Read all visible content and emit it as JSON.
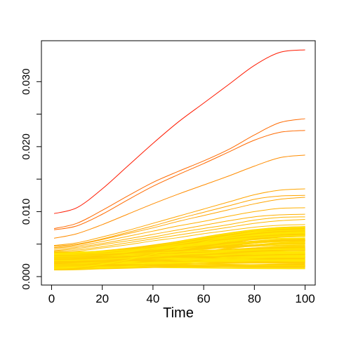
{
  "chart_data": {
    "type": "line",
    "title": "",
    "xlabel": "Time",
    "ylabel": "",
    "xlim": [
      0,
      100
    ],
    "ylim": [
      0,
      0.035
    ],
    "x_ticks": [
      0,
      20,
      40,
      60,
      80,
      100
    ],
    "x_tick_labels": [
      "0",
      "20",
      "40",
      "60",
      "80",
      "100"
    ],
    "y_ticks": [
      0,
      0.01,
      0.02,
      0.03
    ],
    "y_tick_labels": [
      "0.000",
      "0.010",
      "0.020",
      "0.030"
    ],
    "y_minor_ticks": [
      0.005,
      0.015,
      0.025
    ],
    "grid": false,
    "legend": "none",
    "x": [
      1,
      10,
      20,
      30,
      40,
      50,
      60,
      70,
      80,
      90,
      100
    ],
    "highlighted_series": [
      {
        "color": "#ff1a00",
        "values": [
          0.0097,
          0.0106,
          0.0135,
          0.017,
          0.0205,
          0.0238,
          0.0267,
          0.0296,
          0.0325,
          0.0345,
          0.0349
        ]
      },
      {
        "color": "#ff6a00",
        "values": [
          0.0074,
          0.0082,
          0.0102,
          0.0124,
          0.0145,
          0.0162,
          0.0178,
          0.0196,
          0.0218,
          0.0237,
          0.0243
        ]
      },
      {
        "color": "#ff6a00",
        "values": [
          0.0072,
          0.0078,
          0.0096,
          0.0118,
          0.0139,
          0.0157,
          0.0174,
          0.0192,
          0.021,
          0.0222,
          0.0225
        ]
      },
      {
        "color": "#ff8c00",
        "values": [
          0.0059,
          0.0066,
          0.008,
          0.0096,
          0.0112,
          0.0127,
          0.0141,
          0.0155,
          0.017,
          0.0183,
          0.0187
        ]
      },
      {
        "color": "#ffa500",
        "values": [
          0.0048,
          0.0052,
          0.0061,
          0.0071,
          0.0082,
          0.0093,
          0.0104,
          0.0115,
          0.0126,
          0.0133,
          0.0135
        ]
      },
      {
        "color": "#ffa500",
        "values": [
          0.0047,
          0.005,
          0.0058,
          0.0068,
          0.0078,
          0.0089,
          0.0099,
          0.0109,
          0.0119,
          0.0124,
          0.0125
        ]
      },
      {
        "color": "#ffa500",
        "values": [
          0.0045,
          0.0049,
          0.0057,
          0.0066,
          0.0075,
          0.0085,
          0.0094,
          0.0103,
          0.0112,
          0.0119,
          0.0122
        ]
      },
      {
        "color": "#ffb000",
        "values": [
          0.0044,
          0.0047,
          0.0054,
          0.0062,
          0.007,
          0.0078,
          0.0085,
          0.0093,
          0.01,
          0.0105,
          0.0106
        ]
      },
      {
        "color": "#ffb000",
        "values": [
          0.0042,
          0.0045,
          0.0051,
          0.0058,
          0.0065,
          0.0072,
          0.0079,
          0.0086,
          0.0092,
          0.0095,
          0.0096
        ]
      },
      {
        "color": "#ffb800",
        "values": [
          0.004,
          0.0043,
          0.0049,
          0.0055,
          0.0061,
          0.0068,
          0.0074,
          0.008,
          0.0087,
          0.0091,
          0.0092
        ]
      },
      {
        "color": "#ffb800",
        "values": [
          0.0039,
          0.0041,
          0.0046,
          0.0052,
          0.0058,
          0.0064,
          0.007,
          0.0076,
          0.0082,
          0.0086,
          0.0088
        ]
      },
      {
        "color": "#ffc000",
        "values": [
          0.0037,
          0.0039,
          0.0044,
          0.0049,
          0.0055,
          0.006,
          0.0066,
          0.0071,
          0.0076,
          0.0079,
          0.008
        ]
      }
    ],
    "bulk_series": {
      "count": 160,
      "colors": [
        "#ffe600",
        "#ffd000"
      ],
      "start_range": [
        0.001,
        0.0038
      ],
      "end_range": [
        0.0008,
        0.0077
      ]
    }
  }
}
